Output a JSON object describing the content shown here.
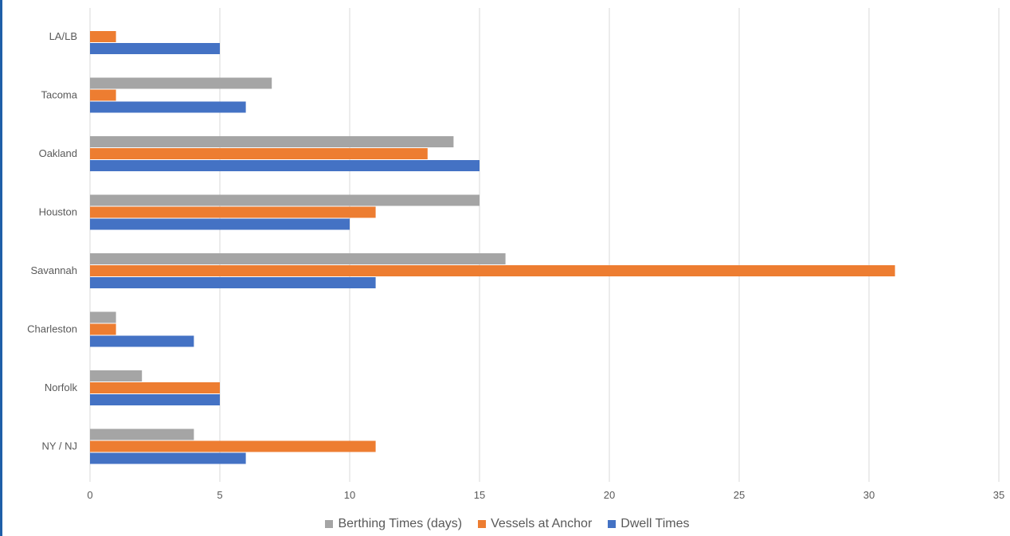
{
  "chart_data": {
    "type": "bar",
    "orientation": "horizontal",
    "categories": [
      "LA/LB",
      "Tacoma",
      "Oakland",
      "Houston",
      "Savannah",
      "Charleston",
      "Norfolk",
      "NY / NJ"
    ],
    "series": [
      {
        "name": "Berthing Times (days)",
        "color": "#a5a5a5",
        "values": [
          0,
          7,
          14,
          15,
          16,
          1,
          2,
          4
        ]
      },
      {
        "name": "Vessels at Anchor",
        "color": "#ed7d31",
        "values": [
          1,
          1,
          13,
          11,
          31,
          1,
          5,
          11
        ]
      },
      {
        "name": "Dwell Times",
        "color": "#4472c4",
        "values": [
          5,
          6,
          15,
          10,
          11,
          4,
          5,
          6
        ]
      }
    ],
    "x_ticks": [
      "0",
      "5",
      "10",
      "15",
      "20",
      "25",
      "30",
      "35"
    ],
    "xlim": [
      0,
      35
    ],
    "grid": true,
    "legend_position": "bottom",
    "title": "",
    "xlabel": "",
    "ylabel": ""
  }
}
